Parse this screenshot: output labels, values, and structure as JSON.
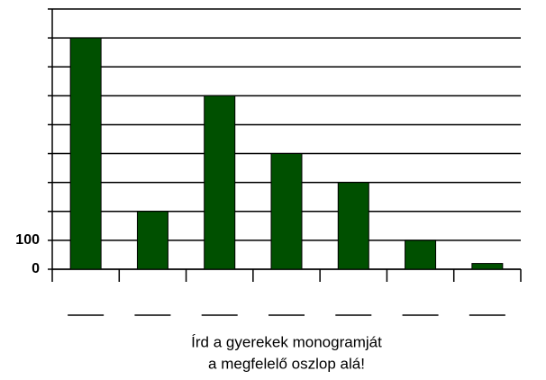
{
  "chart_data": {
    "type": "bar",
    "categories": [
      null,
      null,
      null,
      null,
      null,
      null,
      null
    ],
    "values": [
      800,
      200,
      600,
      400,
      300,
      100,
      20
    ],
    "color": "#005000",
    "ylim": [
      0,
      900
    ],
    "yticks": [
      0,
      100,
      {
        "value": 200,
        "label": null
      },
      {
        "value": 300,
        "label": null
      },
      {
        "value": 400,
        "label": null
      },
      {
        "value": 500,
        "label": null
      },
      {
        "value": 600,
        "label": null
      },
      {
        "value": 700,
        "label": null
      },
      {
        "value": 800,
        "label": null
      }
    ],
    "grid": true,
    "caption": [
      "Írd a gyerekek monogramját",
      "a megfelelő oszlop alá!"
    ]
  }
}
